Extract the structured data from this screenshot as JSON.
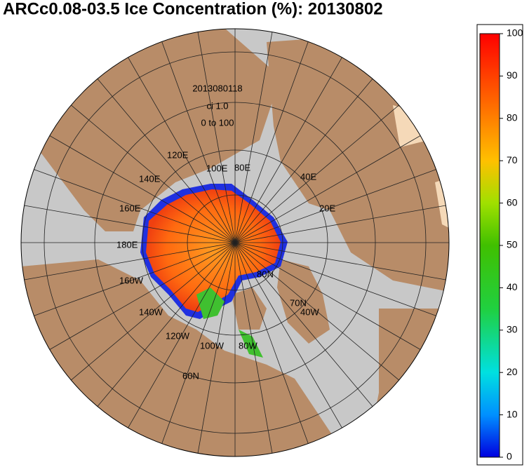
{
  "title": "ARCc0.08-03.5 Ice Concentration (%): 20130802",
  "map": {
    "time": "2013080118",
    "contour_interval": "ci 1.0",
    "range": "0 to 100",
    "lon_labels": [
      "120E",
      "140E",
      "160E",
      "180E",
      "160W",
      "140W",
      "120W",
      "100W",
      "80W",
      "100E",
      "80E",
      "40E",
      "20E",
      "40W"
    ],
    "lat_labels": [
      "80N",
      "70N",
      "60N"
    ]
  },
  "colorbar": {
    "lim": [
      0,
      100
    ],
    "ticks": [
      0,
      10,
      20,
      30,
      40,
      50,
      60,
      70,
      80,
      90,
      100
    ]
  }
}
